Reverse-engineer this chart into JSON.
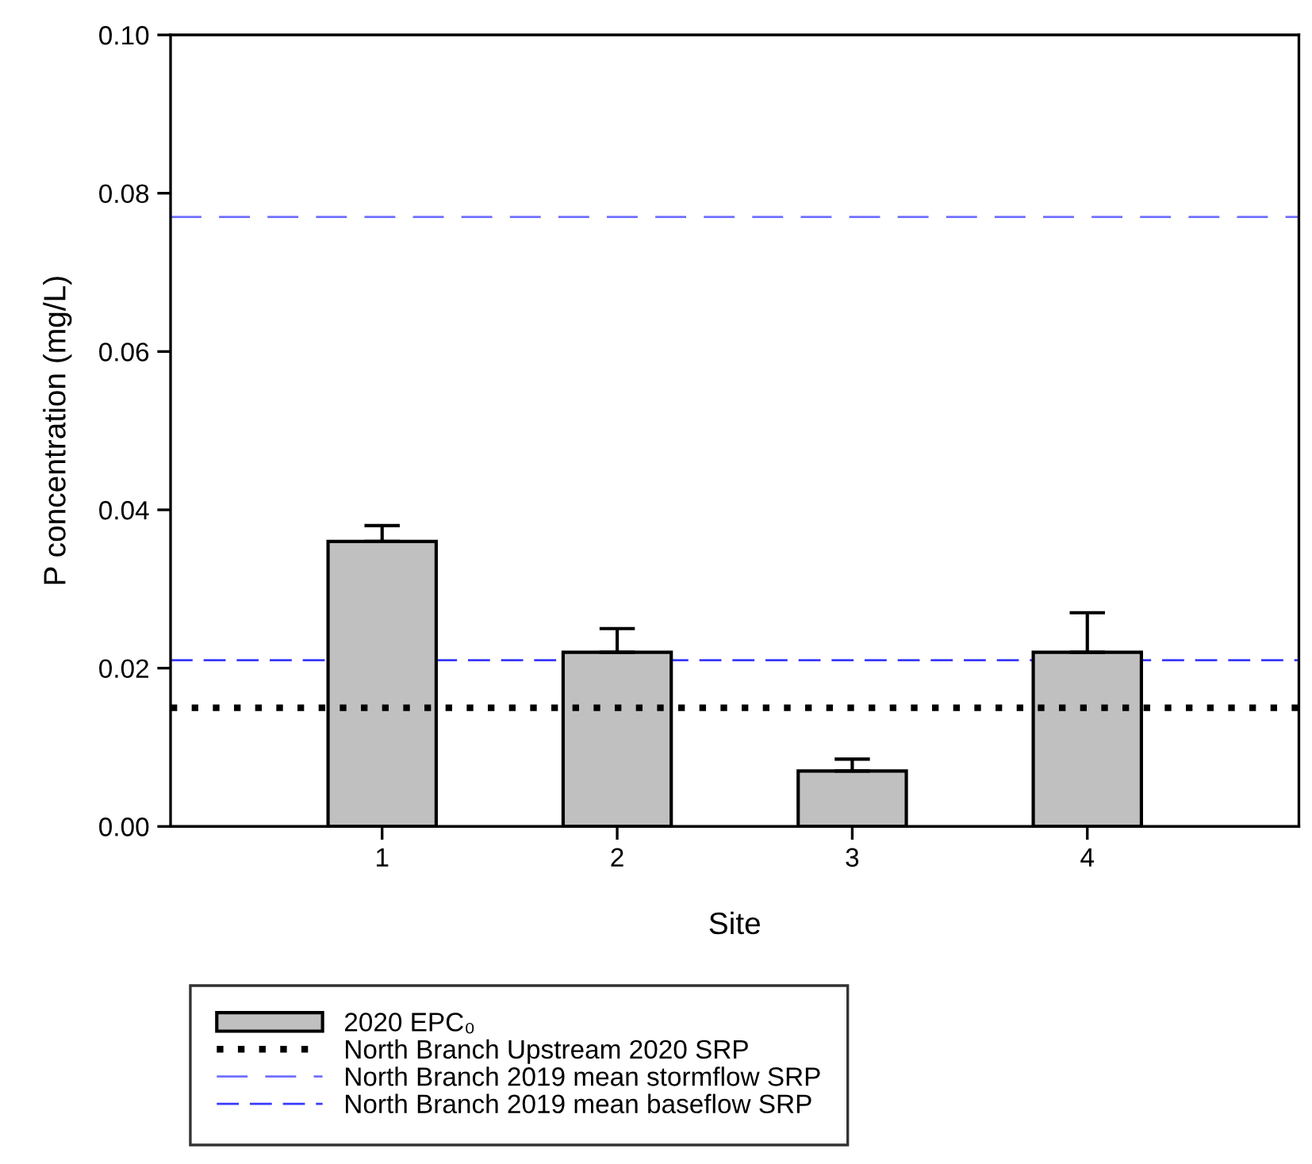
{
  "chart_data": {
    "type": "bar",
    "xlabel": "Site",
    "ylabel": "P concentration (mg/L)",
    "categories": [
      "1",
      "2",
      "3",
      "4"
    ],
    "series": [
      {
        "name": "2020 EPC₀",
        "color": "#c0c0c0",
        "values": [
          0.036,
          0.022,
          0.007,
          0.022
        ],
        "errors": [
          [
            0.036,
            0.038
          ],
          [
            0.022,
            0.025
          ],
          [
            0.007,
            0.0085
          ],
          [
            0.022,
            0.027
          ]
        ]
      }
    ],
    "ylim": [
      0,
      0.1
    ],
    "yticks": [
      {
        "value": 0,
        "label": "0.00"
      },
      {
        "value": 0.02,
        "label": "0.02"
      },
      {
        "value": 0.04,
        "label": "0.04"
      },
      {
        "value": 0.06,
        "label": "0.06"
      },
      {
        "value": 0.08,
        "label": "0.08"
      },
      {
        "value": 0.1,
        "label": "0.10"
      }
    ],
    "ref_lines": [
      {
        "axis": "y",
        "value": 0.015,
        "label": "North Branch Upstream 2020 SRP",
        "color": "#000000",
        "line_style": "dotted"
      },
      {
        "axis": "y",
        "value": 0.077,
        "label": "North Branch 2019 mean stormflow SRP",
        "color": "#7070ff",
        "line_style": "dashed"
      },
      {
        "axis": "y",
        "value": 0.021,
        "label": "North Branch 2019 mean baseflow SRP",
        "color": "#3a3aff",
        "line_style": "dashed"
      }
    ],
    "grid": false,
    "legend": "bottom"
  }
}
